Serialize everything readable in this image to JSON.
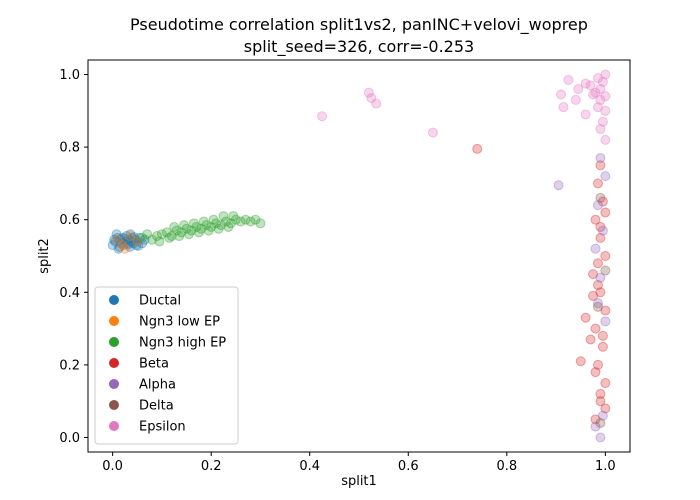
{
  "chart_data": {
    "type": "scatter",
    "title": "Pseudotime correlation split1vs2, panINC+velovi_woprep",
    "subtitle": "split_seed=326, corr=-0.253",
    "xlabel": "split1",
    "ylabel": "split2",
    "xlim": [
      -0.05,
      1.05
    ],
    "ylim": [
      -0.04,
      1.04
    ],
    "xticks": [
      "0.0",
      "0.2",
      "0.4",
      "0.6",
      "0.8",
      "1.0"
    ],
    "yticks": [
      "0.0",
      "0.2",
      "0.4",
      "0.6",
      "0.8",
      "1.0"
    ],
    "grid": false,
    "legend_position": "lower-left",
    "point_alpha": 0.3,
    "series": [
      {
        "name": "Ductal",
        "color": "#1f77b4",
        "points": [
          [
            0.0,
            0.53
          ],
          [
            0.005,
            0.54
          ],
          [
            0.01,
            0.55
          ],
          [
            0.012,
            0.52
          ],
          [
            0.015,
            0.545
          ],
          [
            0.018,
            0.535
          ],
          [
            0.02,
            0.55
          ],
          [
            0.022,
            0.53
          ],
          [
            0.025,
            0.54
          ],
          [
            0.028,
            0.555
          ],
          [
            0.03,
            0.535
          ],
          [
            0.033,
            0.545
          ],
          [
            0.035,
            0.525
          ],
          [
            0.038,
            0.54
          ],
          [
            0.04,
            0.55
          ],
          [
            0.042,
            0.535
          ],
          [
            0.045,
            0.545
          ],
          [
            0.048,
            0.53
          ],
          [
            0.05,
            0.54
          ],
          [
            0.055,
            0.55
          ],
          [
            0.06,
            0.535
          ],
          [
            0.065,
            0.545
          ],
          [
            0.008,
            0.56
          ],
          [
            0.014,
            0.525
          ],
          [
            0.024,
            0.548
          ],
          [
            0.032,
            0.532
          ],
          [
            0.044,
            0.552
          ],
          [
            0.052,
            0.528
          ],
          [
            0.003,
            0.545
          ],
          [
            0.036,
            0.56
          ]
        ]
      },
      {
        "name": "Ngn3 low EP",
        "color": "#ff7f0e",
        "points": [
          [
            0.01,
            0.545
          ],
          [
            0.02,
            0.53
          ],
          [
            0.035,
            0.555
          ],
          [
            0.05,
            0.54
          ],
          [
            0.025,
            0.52
          ]
        ]
      },
      {
        "name": "Ngn3 high EP",
        "color": "#2ca02c",
        "points": [
          [
            0.06,
            0.55
          ],
          [
            0.07,
            0.56
          ],
          [
            0.08,
            0.545
          ],
          [
            0.09,
            0.555
          ],
          [
            0.1,
            0.56
          ],
          [
            0.11,
            0.565
          ],
          [
            0.12,
            0.555
          ],
          [
            0.13,
            0.57
          ],
          [
            0.14,
            0.565
          ],
          [
            0.15,
            0.575
          ],
          [
            0.16,
            0.57
          ],
          [
            0.17,
            0.58
          ],
          [
            0.18,
            0.575
          ],
          [
            0.19,
            0.585
          ],
          [
            0.2,
            0.58
          ],
          [
            0.21,
            0.59
          ],
          [
            0.22,
            0.585
          ],
          [
            0.23,
            0.595
          ],
          [
            0.24,
            0.59
          ],
          [
            0.25,
            0.6
          ],
          [
            0.26,
            0.595
          ],
          [
            0.27,
            0.6
          ],
          [
            0.28,
            0.595
          ],
          [
            0.29,
            0.6
          ],
          [
            0.3,
            0.59
          ],
          [
            0.095,
            0.54
          ],
          [
            0.115,
            0.55
          ],
          [
            0.135,
            0.555
          ],
          [
            0.155,
            0.56
          ],
          [
            0.175,
            0.565
          ],
          [
            0.195,
            0.57
          ],
          [
            0.215,
            0.575
          ],
          [
            0.235,
            0.58
          ],
          [
            0.125,
            0.58
          ],
          [
            0.165,
            0.59
          ],
          [
            0.205,
            0.6
          ],
          [
            0.245,
            0.61
          ],
          [
            0.225,
            0.61
          ],
          [
            0.185,
            0.595
          ],
          [
            0.145,
            0.585
          ]
        ]
      },
      {
        "name": "Beta",
        "color": "#d62728",
        "points": [
          [
            0.74,
            0.795
          ],
          [
            0.98,
            0.05
          ],
          [
            0.99,
            0.1
          ],
          [
            1.0,
            0.15
          ],
          [
            0.985,
            0.2
          ],
          [
            0.995,
            0.25
          ],
          [
            0.97,
            0.27
          ],
          [
            0.98,
            0.3
          ],
          [
            1.0,
            0.35
          ],
          [
            0.99,
            0.4
          ],
          [
            0.975,
            0.45
          ],
          [
            0.985,
            0.48
          ],
          [
            1.0,
            0.5
          ],
          [
            0.99,
            0.55
          ],
          [
            0.98,
            0.6
          ],
          [
            0.995,
            0.65
          ],
          [
            0.985,
            0.7
          ],
          [
            0.99,
            0.75
          ],
          [
            0.95,
            0.21
          ],
          [
            0.96,
            0.33
          ],
          [
            0.975,
            0.39
          ],
          [
            1.0,
            0.08
          ],
          [
            0.99,
            0.12
          ],
          [
            0.98,
            0.18
          ],
          [
            0.995,
            0.28
          ],
          [
            0.985,
            0.42
          ],
          [
            0.99,
            0.58
          ],
          [
            1.0,
            0.62
          ]
        ]
      },
      {
        "name": "Alpha",
        "color": "#9467bd",
        "points": [
          [
            0.905,
            0.695
          ],
          [
            0.99,
            0.0
          ],
          [
            0.98,
            0.03
          ],
          [
            0.995,
            0.06
          ],
          [
            1.0,
            0.32
          ],
          [
            0.985,
            0.37
          ],
          [
            0.99,
            0.44
          ],
          [
            0.98,
            0.52
          ],
          [
            0.995,
            0.57
          ],
          [
            0.985,
            0.64
          ],
          [
            1.0,
            0.72
          ],
          [
            0.99,
            0.77
          ]
        ]
      },
      {
        "name": "Delta",
        "color": "#8c564b",
        "points": [
          [
            0.99,
            0.04
          ],
          [
            0.985,
            0.36
          ],
          [
            1.0,
            0.46
          ],
          [
            0.99,
            0.66
          ]
        ]
      },
      {
        "name": "Epsilon",
        "color": "#e377c2",
        "points": [
          [
            0.425,
            0.885
          ],
          [
            0.52,
            0.95
          ],
          [
            0.525,
            0.935
          ],
          [
            0.535,
            0.92
          ],
          [
            0.65,
            0.84
          ],
          [
            0.91,
            0.945
          ],
          [
            0.915,
            0.91
          ],
          [
            0.925,
            0.985
          ],
          [
            0.94,
            0.93
          ],
          [
            0.945,
            0.96
          ],
          [
            0.96,
            0.89
          ],
          [
            0.97,
            0.97
          ],
          [
            0.98,
            0.95
          ],
          [
            0.985,
            0.99
          ],
          [
            0.99,
            0.93
          ],
          [
            0.995,
            0.98
          ],
          [
            1.0,
            1.0
          ],
          [
            0.99,
            0.96
          ],
          [
            1.0,
            0.94
          ],
          [
            0.985,
            0.91
          ],
          [
            0.995,
            0.87
          ],
          [
            1.0,
            0.82
          ],
          [
            0.99,
            0.85
          ],
          [
            1.0,
            0.9
          ],
          [
            0.975,
            0.945
          ],
          [
            0.96,
            0.975
          ]
        ]
      }
    ]
  }
}
